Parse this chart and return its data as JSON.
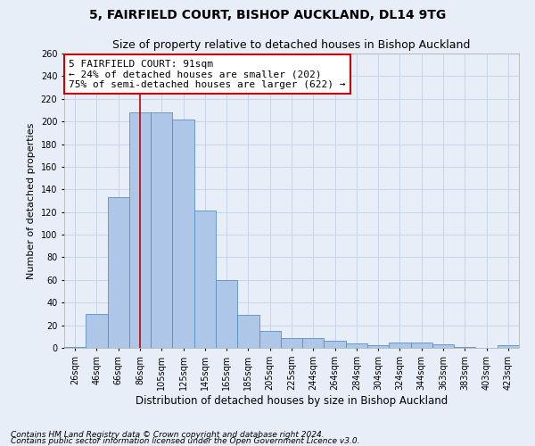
{
  "title1": "5, FAIRFIELD COURT, BISHOP AUCKLAND, DL14 9TG",
  "title2": "Size of property relative to detached houses in Bishop Auckland",
  "xlabel": "Distribution of detached houses by size in Bishop Auckland",
  "ylabel": "Number of detached properties",
  "categories": [
    "26sqm",
    "46sqm",
    "66sqm",
    "86sqm",
    "105sqm",
    "125sqm",
    "145sqm",
    "165sqm",
    "185sqm",
    "205sqm",
    "225sqm",
    "244sqm",
    "264sqm",
    "284sqm",
    "304sqm",
    "324sqm",
    "344sqm",
    "363sqm",
    "383sqm",
    "403sqm",
    "423sqm"
  ],
  "values": [
    1,
    30,
    133,
    208,
    208,
    202,
    121,
    60,
    29,
    15,
    9,
    9,
    6,
    4,
    2,
    5,
    5,
    3,
    1,
    0,
    2
  ],
  "bar_color": "#aec6e8",
  "bar_edge_color": "#5a8fc0",
  "vline_x": 3,
  "vline_color": "#cc0000",
  "annotation_text": "5 FAIRFIELD COURT: 91sqm\n← 24% of detached houses are smaller (202)\n75% of semi-detached houses are larger (622) →",
  "annotation_box_color": "#ffffff",
  "annotation_box_edge": "#cc0000",
  "grid_color": "#c8d4e8",
  "background_color": "#e8eef8",
  "ylim": [
    0,
    260
  ],
  "footnote1": "Contains HM Land Registry data © Crown copyright and database right 2024.",
  "footnote2": "Contains public sector information licensed under the Open Government Licence v3.0.",
  "title1_fontsize": 10,
  "title2_fontsize": 9,
  "annot_fontsize": 8,
  "tick_fontsize": 7,
  "ylabel_fontsize": 8,
  "xlabel_fontsize": 8.5,
  "footnote_fontsize": 6.5
}
